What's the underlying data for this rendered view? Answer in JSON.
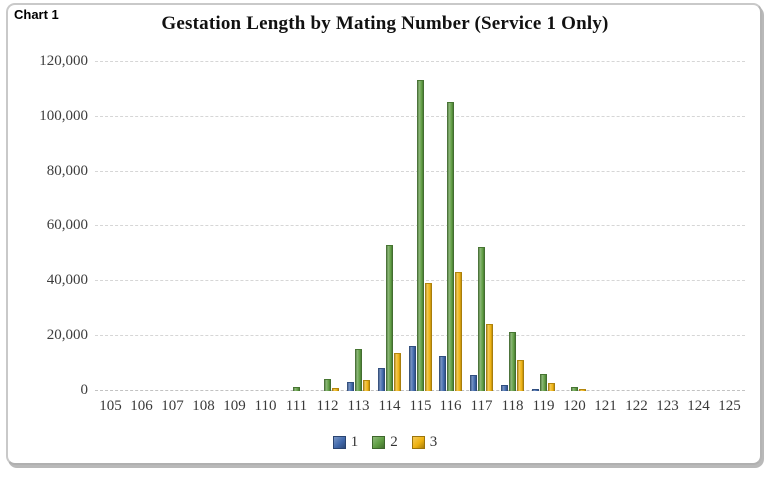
{
  "frame_label": "Chart 1",
  "chart_data": {
    "type": "bar",
    "title": "Gestation Length by Mating Number (Service 1 Only)",
    "xlabel": "",
    "ylabel": "",
    "categories": [
      "105",
      "106",
      "107",
      "108",
      "109",
      "110",
      "111",
      "112",
      "113",
      "114",
      "115",
      "116",
      "117",
      "118",
      "119",
      "120",
      "121",
      "122",
      "123",
      "124",
      "125"
    ],
    "series": [
      {
        "name": "1",
        "color": "#4169ac",
        "values": [
          0,
          0,
          0,
          0,
          0,
          0,
          0,
          0,
          3000,
          8000,
          16000,
          12500,
          5500,
          1800,
          400,
          0,
          0,
          0,
          0,
          0,
          0
        ]
      },
      {
        "name": "2",
        "color": "#5f9d43",
        "values": [
          0,
          0,
          0,
          0,
          0,
          0,
          1000,
          4000,
          15000,
          53000,
          113000,
          105000,
          52000,
          21000,
          6000,
          1200,
          0,
          0,
          0,
          0,
          0
        ]
      },
      {
        "name": "3",
        "color": "#eeb211",
        "values": [
          0,
          0,
          0,
          0,
          0,
          0,
          0,
          700,
          3500,
          13500,
          39000,
          43000,
          24000,
          11000,
          2700,
          500,
          0,
          0,
          0,
          0,
          0
        ]
      }
    ],
    "ylim": [
      0,
      120000
    ],
    "ytick_step": 20000,
    "ytick_labels": [
      "0",
      "20,000",
      "40,000",
      "60,000",
      "80,000",
      "100,000",
      "120,000"
    ],
    "grid": "horizontal-dashed",
    "legend_position": "bottom"
  }
}
